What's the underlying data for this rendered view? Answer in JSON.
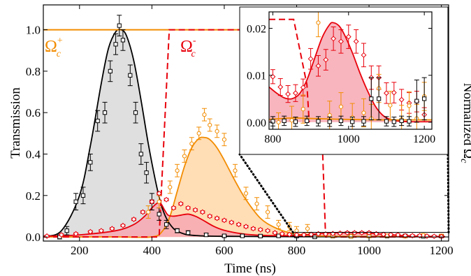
{
  "chart_data": {
    "type": "line",
    "xlabel": "Time (ns)",
    "ylabel": "Transmission",
    "y2label": "Normalized Ω",
    "y2label_sub": "c",
    "xlim": [
      100,
      1220
    ],
    "ylim": [
      -0.02,
      1.12
    ],
    "x_ticks": [
      200,
      400,
      600,
      800,
      1000,
      1200
    ],
    "y_ticks": [
      "0.0",
      "0.2",
      "0.4",
      "0.6",
      "0.8",
      "1.0"
    ],
    "y_tick_values": [
      0.0,
      0.2,
      0.4,
      0.6,
      0.8,
      1.0
    ],
    "legend": {
      "omega_plus": {
        "base": "Ω",
        "sup": "+",
        "sub": "c",
        "color": "#f28c00"
      },
      "omega_minus": {
        "base": "Ω",
        "sup": "-",
        "sub": "c",
        "color": "#e8000b"
      }
    },
    "colors": {
      "black": "#000000",
      "orange": "#f28c00",
      "red": "#e8000b",
      "gray_fill": "#d9d9d9",
      "orange_fill": "#ffd7a8",
      "red_fill": "#f7a8b3"
    },
    "series": [
      {
        "style": "curve-black-filled",
        "x": [
          100,
          150,
          200,
          230,
          260,
          280,
          300,
          315,
          330,
          350,
          370,
          390,
          410,
          425,
          440,
          460,
          480,
          500,
          540,
          600,
          700,
          800,
          900,
          1000,
          1100,
          1210
        ],
        "y": [
          0.003,
          0.03,
          0.2,
          0.44,
          0.74,
          0.91,
          0.99,
          1.0,
          0.97,
          0.85,
          0.66,
          0.45,
          0.27,
          0.16,
          0.09,
          0.04,
          0.02,
          0.01,
          0.005,
          0.003,
          0.002,
          0.001,
          0.001,
          0.001,
          0.001,
          0.001
        ]
      },
      {
        "style": "curve-orange-filled",
        "x": [
          100,
          300,
          400,
          430,
          450,
          470,
          490,
          510,
          530,
          545,
          560,
          580,
          600,
          630,
          660,
          700,
          740,
          780,
          820,
          860,
          900,
          1000,
          1100,
          1210
        ],
        "y": [
          0.0,
          0.0,
          0.0,
          0.03,
          0.1,
          0.22,
          0.34,
          0.43,
          0.475,
          0.48,
          0.47,
          0.43,
          0.37,
          0.27,
          0.18,
          0.09,
          0.045,
          0.02,
          0.01,
          0.005,
          0.003,
          0.002,
          0.002,
          0.002
        ]
      },
      {
        "style": "curve-red-filled",
        "x": [
          100,
          200,
          300,
          350,
          380,
          400,
          415,
          425,
          435,
          445,
          460,
          480,
          500,
          520,
          540,
          570,
          600,
          650,
          700,
          750,
          800,
          850,
          900,
          950,
          1000,
          1050,
          1100,
          1150,
          1210
        ],
        "y": [
          0.003,
          0.01,
          0.03,
          0.06,
          0.1,
          0.14,
          0.163,
          0.16,
          0.13,
          0.105,
          0.1,
          0.105,
          0.11,
          0.1,
          0.082,
          0.052,
          0.032,
          0.015,
          0.008,
          0.006,
          0.007,
          0.014,
          0.02,
          0.021,
          0.018,
          0.012,
          0.006,
          0.003,
          0.002
        ]
      },
      {
        "style": "control-orange",
        "x": [
          100,
          1220
        ],
        "y": [
          1.0,
          1.0
        ]
      },
      {
        "style": "control-red-dashed",
        "x": [
          100,
          420,
          448,
          860,
          880,
          1220
        ],
        "y": [
          0.0,
          0.0,
          1.0,
          1.0,
          0.0,
          0.0
        ]
      },
      {
        "style": "markers-black-square",
        "x": [
          145,
          165,
          190,
          210,
          230,
          250,
          270,
          285,
          300,
          310,
          320,
          340,
          355,
          370,
          385,
          400,
          420,
          440,
          470,
          500,
          550,
          600,
          650,
          700,
          750,
          800,
          850,
          900,
          950,
          1000,
          1050,
          1100,
          1150,
          1200
        ],
        "y": [
          0.0,
          0.03,
          0.17,
          0.2,
          0.36,
          0.56,
          0.6,
          0.8,
          0.93,
          1.02,
          0.95,
          0.78,
          0.6,
          0.4,
          0.31,
          0.17,
          0.11,
          0.06,
          0.03,
          0.02,
          0.01,
          0.005,
          0.005,
          0.004,
          0.005,
          0.004,
          0.0,
          0.004,
          0.003,
          0.005,
          0.004,
          0.005,
          0.003,
          0.004
        ],
        "err": [
          0.01,
          0.02,
          0.04,
          0.04,
          0.04,
          0.05,
          0.05,
          0.05,
          0.05,
          0.05,
          0.05,
          0.05,
          0.05,
          0.05,
          0.05,
          0.04,
          0.03,
          0.02,
          0.01,
          0.01,
          0.008,
          0.006,
          0.006,
          0.006,
          0.006,
          0.006,
          0.005,
          0.006,
          0.006,
          0.006,
          0.006,
          0.006,
          0.006,
          0.006
        ]
      },
      {
        "style": "markers-orange-circle",
        "x": [
          390,
          420,
          450,
          470,
          490,
          510,
          530,
          545,
          560,
          580,
          600,
          630,
          660,
          690,
          720,
          750,
          780,
          800,
          830,
          860,
          900,
          950,
          1000,
          1050,
          1100,
          1150,
          1200
        ],
        "y": [
          0.12,
          0.17,
          0.24,
          0.32,
          0.39,
          0.45,
          0.5,
          0.59,
          0.54,
          0.51,
          0.47,
          0.32,
          0.21,
          0.16,
          0.12,
          0.06,
          0.05,
          0.03,
          0.04,
          0.01,
          0.005,
          0.003,
          0.004,
          0.006,
          0.003,
          0.008,
          0.005
        ],
        "err": [
          0.03,
          0.03,
          0.03,
          0.03,
          0.03,
          0.03,
          0.03,
          0.03,
          0.03,
          0.03,
          0.03,
          0.03,
          0.03,
          0.03,
          0.03,
          0.02,
          0.02,
          0.02,
          0.02,
          0.01,
          0.008,
          0.008,
          0.008,
          0.008,
          0.008,
          0.008,
          0.008
        ]
      },
      {
        "style": "markers-red-diamond",
        "x": [
          110,
          150,
          190,
          230,
          260,
          290,
          320,
          350,
          375,
          400,
          420,
          440,
          460,
          480,
          500,
          520,
          540,
          560,
          580,
          600,
          620,
          640,
          660,
          680,
          700,
          720,
          740,
          760,
          780,
          800,
          820,
          840,
          860,
          880,
          900,
          920,
          940,
          960,
          980,
          1000,
          1020,
          1040,
          1060,
          1080,
          1100,
          1120,
          1140,
          1160,
          1180,
          1200
        ],
        "y": [
          0.004,
          0.01,
          0.015,
          0.025,
          0.03,
          0.04,
          0.055,
          0.085,
          0.12,
          0.17,
          0.21,
          0.18,
          0.14,
          0.16,
          0.14,
          0.13,
          0.12,
          0.1,
          0.09,
          0.08,
          0.07,
          0.06,
          0.05,
          0.04,
          0.035,
          0.03,
          0.02,
          0.015,
          0.012,
          0.01,
          0.01,
          0.012,
          0.015,
          0.014,
          0.016,
          0.018,
          0.02,
          0.02,
          0.02,
          0.02,
          0.015,
          0.012,
          0.011,
          0.01,
          0.006,
          0.006,
          0.006,
          0.004,
          0.003,
          0.002
        ],
        "err": [
          0.005,
          0.005,
          0.005,
          0.005,
          0.005,
          0.005,
          0.005,
          0.006,
          0.006,
          0.006,
          0.006,
          0.006,
          0.006,
          0.006,
          0.006,
          0.006,
          0.006,
          0.006,
          0.006,
          0.006,
          0.006,
          0.006,
          0.006,
          0.006,
          0.006,
          0.005,
          0.005,
          0.005,
          0.005,
          0.005,
          0.005,
          0.005,
          0.005,
          0.005,
          0.005,
          0.005,
          0.005,
          0.005,
          0.005,
          0.005,
          0.005,
          0.005,
          0.005,
          0.005,
          0.005,
          0.005,
          0.005,
          0.005,
          0.005,
          0.005
        ]
      }
    ],
    "inset": {
      "xlim": [
        790,
        1220
      ],
      "ylim": [
        -0.0015,
        0.0235
      ],
      "x_ticks": [
        800,
        1000,
        1200
      ],
      "y_ticks": [
        "0.00",
        "0.01",
        "0.02"
      ],
      "y_tick_values": [
        0.0,
        0.01,
        0.02
      ],
      "region": {
        "x": [
          790,
          1220
        ],
        "y": [
          0.0,
          0.022
        ]
      },
      "series": [
        {
          "style": "curve-red-filled",
          "x": [
            790,
            810,
            830,
            850,
            870,
            890,
            910,
            930,
            950,
            960,
            975,
            990,
            1010,
            1030,
            1050,
            1070,
            1090,
            1110,
            1140,
            1170,
            1200,
            1220
          ],
          "y": [
            0.0075,
            0.0062,
            0.0052,
            0.005,
            0.006,
            0.009,
            0.0135,
            0.018,
            0.0208,
            0.0212,
            0.0205,
            0.0185,
            0.0148,
            0.0105,
            0.0067,
            0.0035,
            0.0015,
            0.0006,
            0.0002,
            0.0001,
            0.0001,
            0.0001
          ]
        },
        {
          "style": "curve-orange",
          "x": [
            790,
            850,
            900,
            1000,
            1100,
            1220
          ],
          "y": [
            0.0006,
            0.0009,
            0.0008,
            0.0006,
            0.0005,
            0.0005
          ]
        },
        {
          "style": "control-red-dashed",
          "x": [
            790,
            855,
            890,
            896
          ],
          "y": [
            0.0219,
            0.0219,
            0.008,
            0.0
          ]
        },
        {
          "style": "markers-red-diamond",
          "x": [
            800,
            820,
            840,
            860,
            880,
            900,
            920,
            940,
            960,
            980,
            1000,
            1020,
            1040,
            1060,
            1080,
            1100,
            1120,
            1140,
            1160,
            1180,
            1200
          ],
          "y": [
            0.0097,
            0.0075,
            0.006,
            0.0062,
            0.0074,
            0.0135,
            0.012,
            0.0133,
            0.0178,
            0.0172,
            0.0182,
            0.0172,
            0.0143,
            0.0095,
            0.0095,
            0.0062,
            0.0063,
            0.0048,
            0.0041,
            0.0044,
            0.0016
          ],
          "err": [
            0.0015,
            0.0018,
            0.0018,
            0.0018,
            0.0018,
            0.0022,
            0.0022,
            0.0022,
            0.0025,
            0.0025,
            0.0025,
            0.0025,
            0.0025,
            0.0025,
            0.0025,
            0.0022,
            0.0022,
            0.0022,
            0.0022,
            0.0022,
            0.0015
          ]
        },
        {
          "style": "markers-orange-circle",
          "x": [
            815,
            850,
            880,
            920,
            950,
            980,
            1010,
            1040,
            1060,
            1080,
            1110,
            1140,
            1160,
            1180,
            1200
          ],
          "y": [
            0.0,
            0.0004,
            0.0028,
            0.0212,
            0.0015,
            0.0033,
            0.001,
            0.002,
            0.0008,
            0.0072,
            0.0036,
            0.0006,
            0.0035,
            0.0008,
            0.0055
          ],
          "err": [
            0.002,
            0.003,
            0.003,
            0.003,
            0.003,
            0.003,
            0.003,
            0.003,
            0.003,
            0.003,
            0.003,
            0.003,
            0.003,
            0.003,
            0.003
          ]
        },
        {
          "style": "markers-black-square",
          "x": [
            800,
            830,
            860,
            890,
            920,
            950,
            980,
            1010,
            1040,
            1060,
            1080,
            1100,
            1120,
            1140,
            1160,
            1180,
            1200
          ],
          "y": [
            0.0002,
            0.0003,
            0.0001,
            0.0003,
            0.0002,
            0.0001,
            0.0003,
            0.0001,
            0.0002,
            0.005,
            0.005,
            0.0002,
            0.0001,
            0.0003,
            0.0002,
            0.0045,
            0.005
          ],
          "err": [
            0.001,
            0.001,
            0.001,
            0.001,
            0.001,
            0.001,
            0.001,
            0.001,
            0.001,
            0.0045,
            0.0045,
            0.001,
            0.001,
            0.001,
            0.001,
            0.0045,
            0.0045
          ]
        }
      ]
    }
  }
}
